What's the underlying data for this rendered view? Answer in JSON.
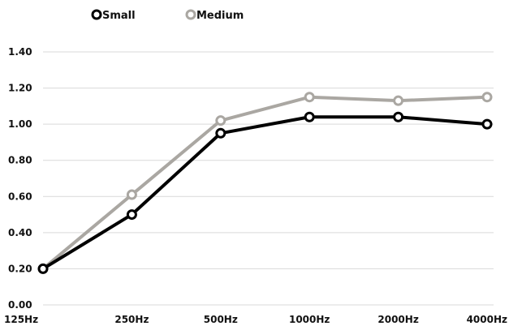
{
  "chart_data": {
    "type": "line",
    "title": "",
    "xlabel": "",
    "ylabel": "",
    "categories": [
      "125Hz",
      "250Hz",
      "500Hz",
      "1000Hz",
      "2000Hz",
      "4000Hz"
    ],
    "ylim": [
      0,
      1.4
    ],
    "yticks": [
      "0.00",
      "0.20",
      "0.40",
      "0.60",
      "0.80",
      "1.00",
      "1.20",
      "1.40"
    ],
    "grid": "horizontal",
    "legend_position": "top-left",
    "series": [
      {
        "name": "Small",
        "color": "#000000",
        "values": [
          0.2,
          0.5,
          0.95,
          1.04,
          1.04,
          1.0
        ]
      },
      {
        "name": "Medium",
        "color": "#aaa7a2",
        "values": [
          0.2,
          0.61,
          1.02,
          1.15,
          1.13,
          1.15
        ]
      }
    ]
  }
}
